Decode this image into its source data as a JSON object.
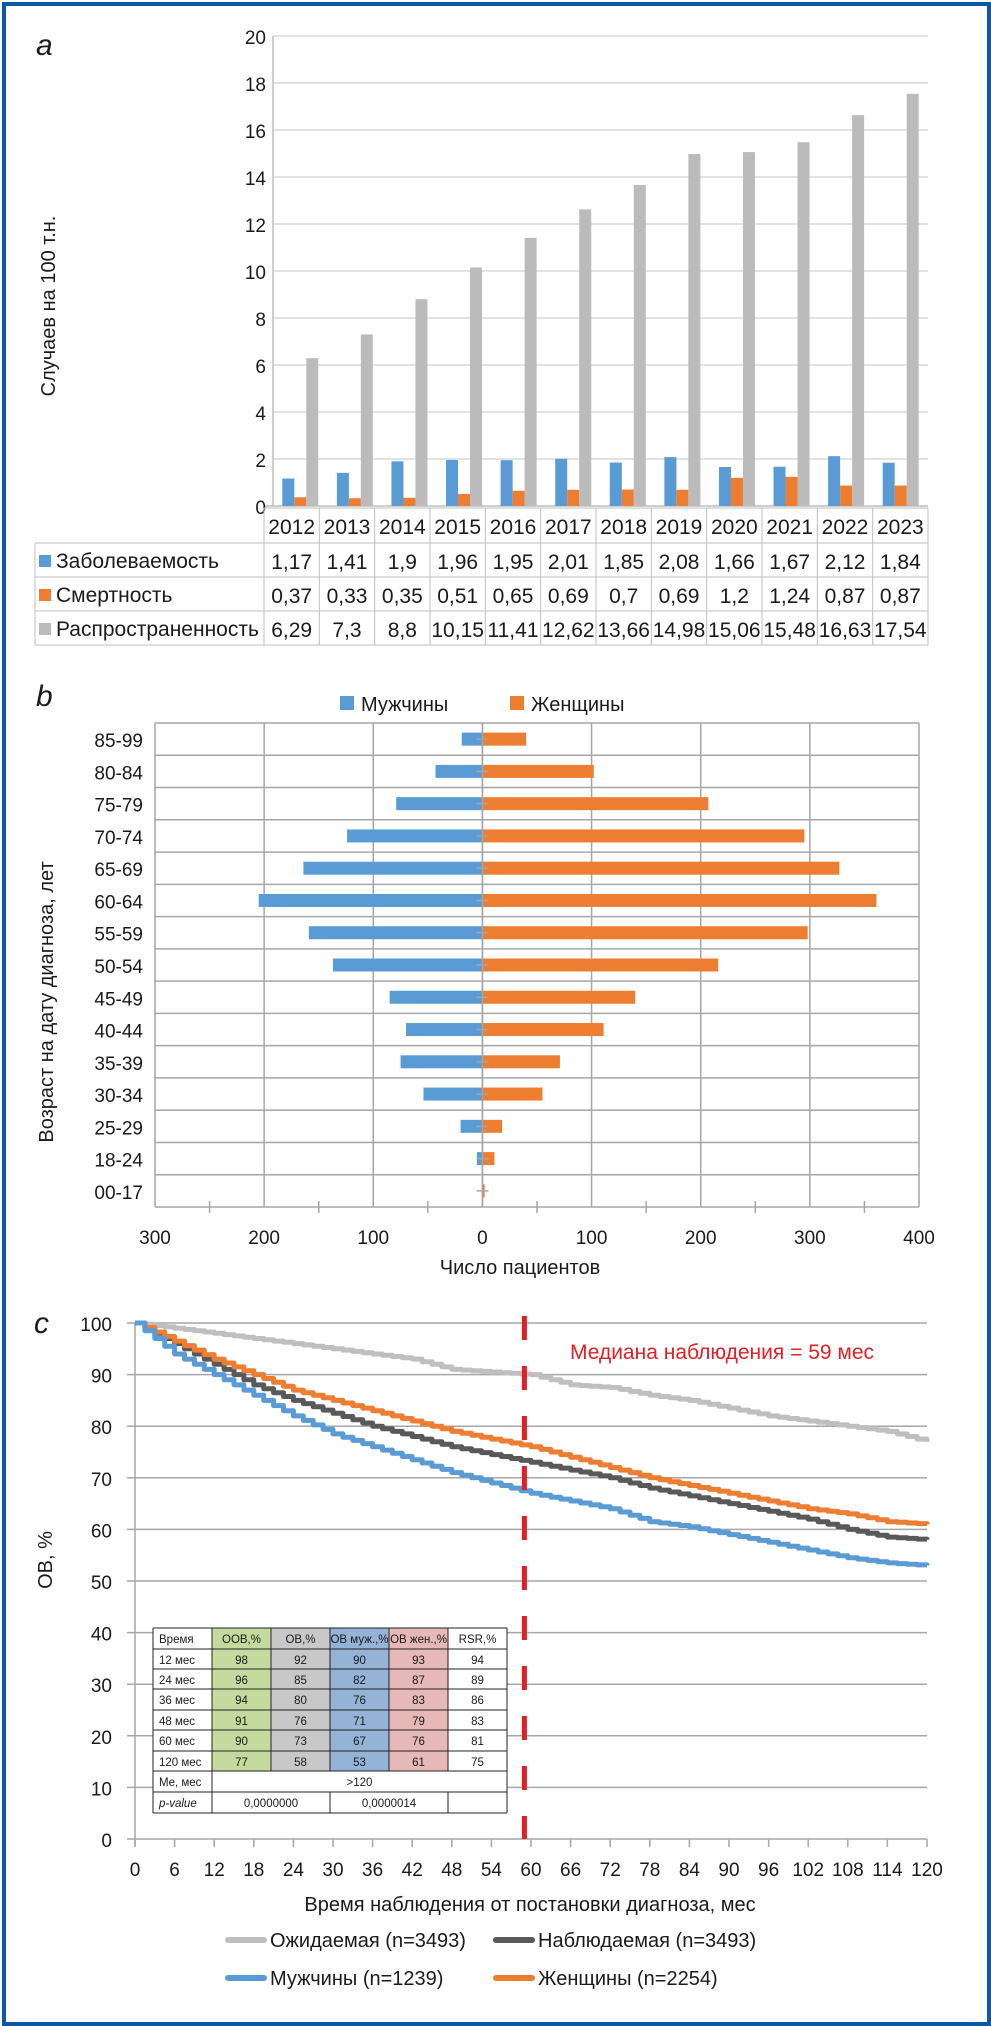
{
  "panels": {
    "a": "a",
    "b": "b",
    "c": "c"
  },
  "chart_data": [
    {
      "id": "a",
      "type": "bar",
      "title": "",
      "xlabel": "",
      "ylabel": "Случаев на 100 т.н.",
      "ylim": [
        0,
        20
      ],
      "yticks": [
        0,
        2,
        4,
        6,
        8,
        10,
        12,
        14,
        16,
        18,
        20
      ],
      "grid": true,
      "categories": [
        "2012",
        "2013",
        "2014",
        "2015",
        "2016",
        "2017",
        "2018",
        "2019",
        "2020",
        "2021",
        "2022",
        "2023"
      ],
      "series": [
        {
          "name": "Заболеваемость",
          "color": "#5B9BD5",
          "values": [
            1.17,
            1.41,
            1.9,
            1.96,
            1.95,
            2.01,
            1.85,
            2.08,
            1.66,
            1.67,
            2.12,
            1.84
          ],
          "labels": [
            "1,17",
            "1,41",
            "1,9",
            "1,96",
            "1,95",
            "2,01",
            "1,85",
            "2,08",
            "1,66",
            "1,67",
            "2,12",
            "1,84"
          ]
        },
        {
          "name": "Смертность",
          "color": "#ED7D31",
          "values": [
            0.37,
            0.33,
            0.35,
            0.51,
            0.65,
            0.69,
            0.7,
            0.69,
            1.2,
            1.24,
            0.87,
            0.87
          ],
          "labels": [
            "0,37",
            "0,33",
            "0,35",
            "0,51",
            "0,65",
            "0,69",
            "0,7",
            "0,69",
            "1,2",
            "1,24",
            "0,87",
            "0,87"
          ]
        },
        {
          "name": "Распространенность",
          "color": "#BBBBBB",
          "values": [
            6.29,
            7.3,
            8.8,
            10.15,
            11.41,
            12.62,
            13.66,
            14.98,
            15.06,
            15.48,
            16.63,
            17.54
          ],
          "labels": [
            "6,29",
            "7,3",
            "8,8",
            "10,15",
            "11,41",
            "12,62",
            "13,66",
            "14,98",
            "15,06",
            "15,48",
            "16,63",
            "17,54"
          ]
        }
      ],
      "legend": "data-table-below"
    },
    {
      "id": "b",
      "type": "bar",
      "orientation": "horizontal-population-pyramid",
      "xlabel": "Число пациентов",
      "ylabel": "Возраст на дату диагноза, лет",
      "xlim": [
        -300,
        400
      ],
      "xticks": [
        {
          "v": -300,
          "label": "300"
        },
        {
          "v": -200,
          "label": "200"
        },
        {
          "v": -100,
          "label": "100"
        },
        {
          "v": 0,
          "label": "0"
        },
        {
          "v": 100,
          "label": "100"
        },
        {
          "v": 200,
          "label": "200"
        },
        {
          "v": 300,
          "label": "300"
        },
        {
          "v": 400,
          "label": "400"
        }
      ],
      "grid": true,
      "categories": [
        "85-99",
        "80-84",
        "75-79",
        "70-74",
        "65-69",
        "60-64",
        "55-59",
        "50-54",
        "45-49",
        "40-44",
        "35-39",
        "30-34",
        "25-29",
        "18-24",
        "00-17"
      ],
      "series": [
        {
          "name": "Мужчины",
          "color": "#5B9BD5",
          "values": [
            19,
            43,
            79,
            124,
            164,
            205,
            159,
            137,
            85,
            70,
            75,
            54,
            20,
            5,
            0
          ]
        },
        {
          "name": "Женщины",
          "color": "#ED7D31",
          "values": [
            40,
            102,
            207,
            295,
            327,
            361,
            298,
            216,
            140,
            111,
            71,
            55,
            18,
            11,
            2
          ]
        }
      ],
      "legend": "top"
    },
    {
      "id": "c",
      "type": "line",
      "subtype": "kaplan-meier",
      "xlabel": "Время наблюдения от постановки диагноза, мес",
      "ylabel": "ОВ, %",
      "xlim": [
        0,
        120
      ],
      "ylim": [
        0,
        100
      ],
      "xticks": [
        0,
        6,
        12,
        18,
        24,
        30,
        36,
        42,
        48,
        54,
        60,
        66,
        72,
        78,
        84,
        90,
        96,
        102,
        108,
        114,
        120
      ],
      "yticks": [
        0,
        10,
        20,
        30,
        40,
        50,
        60,
        70,
        80,
        90,
        100
      ],
      "grid": true,
      "annotation": {
        "text": "Медиана наблюдения = 59 мес",
        "x": 59,
        "color": "#E31E24"
      },
      "series": [
        {
          "name": "Ожидаемая (n=3493)",
          "color": "#BFBFBF",
          "x": [
            0,
            6,
            12,
            18,
            24,
            30,
            36,
            42,
            48,
            54,
            60,
            66,
            72,
            78,
            84,
            90,
            96,
            102,
            108,
            114,
            120
          ],
          "y": [
            100,
            99,
            98,
            97,
            96,
            95,
            94,
            93,
            91,
            90.5,
            90,
            88,
            87.5,
            86,
            85,
            83.5,
            82,
            81,
            80,
            79,
            77
          ]
        },
        {
          "name": "Наблюдаемая (n=3493)",
          "color": "#595959",
          "x": [
            0,
            6,
            12,
            18,
            24,
            30,
            36,
            42,
            48,
            54,
            60,
            66,
            72,
            78,
            84,
            90,
            96,
            102,
            108,
            114,
            120
          ],
          "y": [
            100,
            96,
            92,
            88,
            85,
            82.5,
            80,
            78,
            76,
            74.5,
            73,
            71.5,
            70,
            68,
            66.5,
            65,
            63.5,
            62,
            60,
            58.5,
            58
          ]
        },
        {
          "name": "Мужчины (n=1239)",
          "color": "#5B9BD5",
          "x": [
            0,
            6,
            12,
            18,
            24,
            30,
            36,
            42,
            48,
            54,
            60,
            66,
            72,
            78,
            84,
            90,
            96,
            102,
            108,
            114,
            120
          ],
          "y": [
            100,
            94,
            90,
            86,
            82,
            78.5,
            76,
            73.5,
            71,
            69,
            67,
            65.5,
            64,
            61.5,
            60.5,
            59,
            57.5,
            56,
            54.5,
            53.5,
            53
          ]
        },
        {
          "name": "Женщины (n=2254)",
          "color": "#ED7D31",
          "x": [
            0,
            6,
            12,
            18,
            24,
            30,
            36,
            42,
            48,
            54,
            60,
            66,
            72,
            78,
            84,
            90,
            96,
            102,
            108,
            114,
            120
          ],
          "y": [
            100,
            96.5,
            93,
            90,
            87,
            85,
            83,
            81,
            79,
            77.5,
            76,
            74,
            72,
            70,
            68.5,
            67,
            65.5,
            64,
            63,
            61.5,
            61
          ]
        }
      ],
      "legend": "bottom",
      "inset_table": {
        "headers": [
          "Время",
          "ООВ,%",
          "ОВ,%",
          "ОВ муж.,%",
          "ОВ жен.,%",
          "RSR,%"
        ],
        "header_colors": [
          "#FFFFFF",
          "#C5DA9E",
          "#C8C8C8",
          "#95B3D7",
          "#E6B8B7",
          "#FFFFFF"
        ],
        "rows": [
          [
            "12 мес",
            "98",
            "92",
            "90",
            "93",
            "94"
          ],
          [
            "24 мес",
            "96",
            "85",
            "82",
            "87",
            "89"
          ],
          [
            "36 мес",
            "94",
            "80",
            "76",
            "83",
            "86"
          ],
          [
            "48 мес",
            "91",
            "76",
            "71",
            "79",
            "83"
          ],
          [
            "60 мес",
            "90",
            "73",
            "67",
            "76",
            "81"
          ],
          [
            "120 мес",
            "77",
            "58",
            "53",
            "61",
            "75"
          ]
        ],
        "median_label": "Me, мес",
        "median_value": ">120",
        "pvalue_label": "p-value",
        "pvalue_1": "0,0000000",
        "pvalue_2": "0,0000014"
      }
    }
  ]
}
